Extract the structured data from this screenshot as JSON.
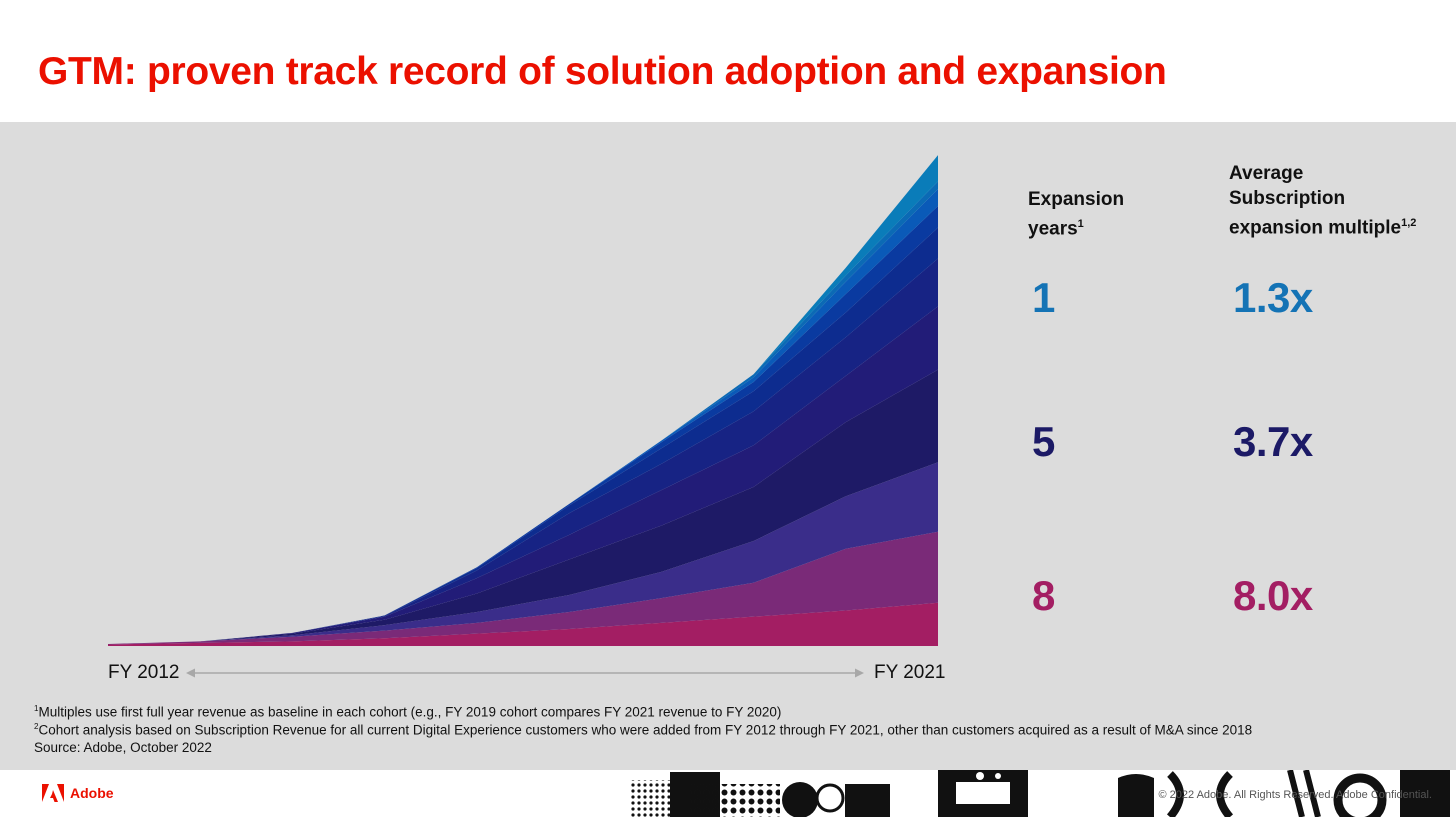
{
  "slide": {
    "title": "GTM: proven track record of solution adoption and expansion"
  },
  "chart_data": {
    "type": "area",
    "stacked": true,
    "x_start_label": "FY 2012",
    "x_end_label": "FY 2021",
    "x": [
      2012,
      2013,
      2014,
      2015,
      2016,
      2017,
      2018,
      2019,
      2020,
      2021
    ],
    "colors": [
      "#a31e63",
      "#7a2a78",
      "#3a2d8a",
      "#1e1a66",
      "#221c78",
      "#172384",
      "#0d2c8f",
      "#0a3aa0",
      "#0a5ab8",
      "#0b6ab5",
      "#0a7cb9"
    ],
    "series": [
      {
        "values": [
          1,
          2,
          3,
          5,
          8,
          11,
          15,
          19,
          23,
          28
        ]
      },
      {
        "values": [
          0.3,
          1,
          3,
          5,
          7,
          11,
          16,
          22,
          40,
          46
        ]
      },
      {
        "values": [
          0,
          0,
          1,
          3.5,
          7,
          11,
          17,
          27,
          34,
          45
        ]
      },
      {
        "values": [
          0,
          0,
          1,
          3.5,
          12,
          23,
          30,
          35,
          48,
          60
        ]
      },
      {
        "values": [
          0,
          0,
          0.5,
          2,
          10,
          16,
          23,
          27,
          30,
          41
        ]
      },
      {
        "values": [
          0,
          0,
          0,
          0.5,
          5,
          14,
          17,
          22,
          25,
          31
        ]
      },
      {
        "values": [
          0,
          0,
          0,
          0.3,
          1.5,
          5,
          10,
          13,
          16,
          20
        ]
      },
      {
        "values": [
          0,
          0,
          0,
          0,
          0.5,
          1,
          4,
          6,
          12,
          14
        ]
      },
      {
        "values": [
          0,
          0,
          0,
          0,
          0,
          0,
          1,
          3,
          8,
          11
        ]
      },
      {
        "values": [
          0,
          0,
          0,
          0,
          0,
          0,
          0,
          2,
          4,
          5
        ]
      },
      {
        "values": [
          0,
          0,
          0,
          0,
          0,
          0,
          0,
          0,
          5,
          17
        ]
      }
    ],
    "ylim": [
      0,
      320
    ],
    "axis_arrow": true
  },
  "table": {
    "col1_header": "Expansion years",
    "col1_sup": "1",
    "col2_header_lines": [
      "Average",
      "Subscription",
      "expansion multiple"
    ],
    "col2_sup": "1,2",
    "rows": [
      {
        "years": "1",
        "multiple": "1.3x",
        "color": "#1473b5"
      },
      {
        "years": "5",
        "multiple": "3.7x",
        "color": "#1c1a66"
      },
      {
        "years": "8",
        "multiple": "8.0x",
        "color": "#a31e63"
      }
    ]
  },
  "footnotes": [
    {
      "sup": "1",
      "text": "Multiples use first full year revenue as baseline in each cohort (e.g., FY 2019 cohort compares FY 2021 revenue to FY 2020)"
    },
    {
      "sup": "2",
      "text": "Cohort analysis based on Subscription Revenue for all current Digital Experience customers who were added from FY 2012 through FY 2021, other than customers acquired as a result of M&A since 2018"
    },
    {
      "sup": "",
      "text": "Source: Adobe, October 2022"
    }
  ],
  "footer": {
    "brand": "Adobe",
    "copyright": "© 2022 Adobe. All Rights Reserved. Adobe Confidential.",
    "brand_color": "#eb1000"
  }
}
